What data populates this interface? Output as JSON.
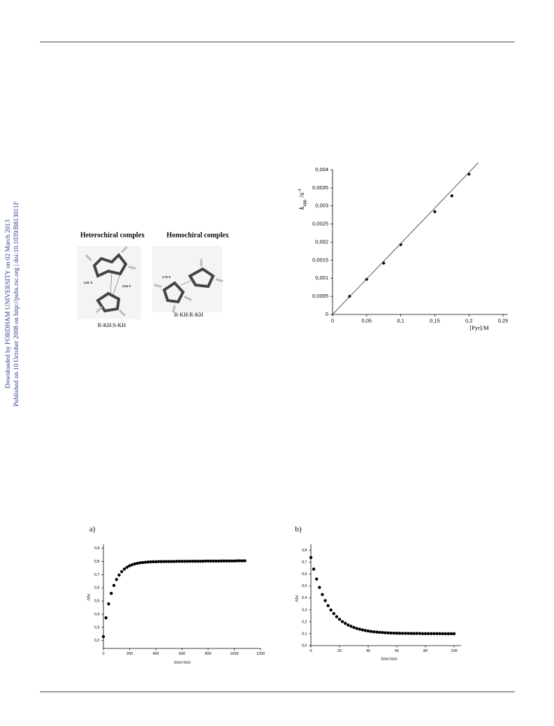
{
  "sidebar": {
    "downloaded": "Downloaded by FORDHAM UNIVERSITY on 02 March 2013",
    "published": "Published on 10 October 2008 on http://pubs.rsc.org | doi:10.1039/B813011F"
  },
  "figure_structures": {
    "left_title": "Heterochiral complex",
    "right_title": "Homochiral complex",
    "distance_1": "2.91 Å",
    "distance_2": "2.84 Å",
    "distance_3": "2.79 Å",
    "left_caption": "R-KH:S-KH",
    "right_caption": "R-KH:R-KH"
  },
  "chart_data": [
    {
      "type": "scatter",
      "x_label": "[Pyr]/M",
      "y_label": {
        "symbol": "k",
        "subscript": "app",
        "unit": "/s",
        "superscript": "-1"
      },
      "xlim": [
        0,
        0.25
      ],
      "ylim": [
        0,
        0.004
      ],
      "xticks": [
        0,
        {
          "value": 0.05,
          "label": "0,05"
        },
        {
          "value": 0.1,
          "label": "0,1"
        },
        {
          "value": 0.15,
          "label": "0,15"
        },
        {
          "value": 0.2,
          "label": "0,2"
        },
        {
          "value": 0.25,
          "label": "0,25"
        }
      ],
      "yticks": [
        0,
        {
          "value": 0.0005,
          "label": "0,0005"
        },
        {
          "value": 0.001,
          "label": "0,001"
        },
        {
          "value": 0.0015,
          "label": "0,0015"
        },
        {
          "value": 0.002,
          "label": "0,002"
        },
        {
          "value": 0.0025,
          "label": "0,0025"
        },
        {
          "value": 0.003,
          "label": "0,003"
        },
        {
          "value": 0.0035,
          "label": "0,0035"
        },
        {
          "value": 0.004,
          "label": "0,004"
        }
      ],
      "series": [
        {
          "color": "#000000",
          "marker": "diamond",
          "x": [
            0.025,
            0.05,
            0.075,
            0.1,
            0.15,
            0.175,
            0.2
          ],
          "values": [
            0.0005,
            0.00097,
            0.00142,
            0.00193,
            0.00284,
            0.00328,
            0.00388
          ]
        },
        {
          "color": "#555555",
          "style": "line",
          "x": [
            0,
            0.214
          ],
          "values": [
            0,
            0.0042
          ]
        }
      ]
    },
    {
      "type": "scatter",
      "panel": "a)",
      "x_label": "time/min",
      "y_label": "Abs",
      "xlim": [
        0,
        1200
      ],
      "ylim": [
        0.14,
        0.93
      ],
      "xticks": [
        0,
        200,
        400,
        600,
        800,
        1000,
        1200
      ],
      "yticks": [
        {
          "value": 0.2,
          "label": "0,2"
        },
        {
          "value": 0.3,
          "label": "0,3"
        },
        {
          "value": 0.4,
          "label": "0,4"
        },
        {
          "value": 0.5,
          "label": "0,5"
        },
        {
          "value": 0.6,
          "label": "0,6"
        },
        {
          "value": 0.7,
          "label": "0,7"
        },
        {
          "value": 0.8,
          "label": "0,8"
        },
        {
          "value": 0.9,
          "label": "0,9"
        }
      ],
      "series": [
        {
          "color": "#000000",
          "marker": "circle",
          "x": [
            0,
            20,
            40,
            60,
            80,
            100,
            120,
            140,
            160,
            180,
            200,
            220,
            240,
            260,
            280,
            300,
            320,
            340,
            360,
            380,
            400,
            420,
            440,
            460,
            480,
            500,
            520,
            540,
            560,
            580,
            600,
            620,
            640,
            660,
            680,
            700,
            720,
            740,
            760,
            780,
            800,
            820,
            840,
            860,
            880,
            900,
            920,
            940,
            960,
            980,
            1000,
            1020,
            1040,
            1060,
            1080
          ],
          "values": [
            0.23,
            0.372,
            0.478,
            0.558,
            0.618,
            0.663,
            0.697,
            0.723,
            0.742,
            0.756,
            0.767,
            0.775,
            0.782,
            0.786,
            0.79,
            0.792,
            0.794,
            0.796,
            0.797,
            0.798,
            0.798,
            0.799,
            0.799,
            0.799,
            0.8,
            0.8,
            0.8,
            0.8,
            0.801,
            0.801,
            0.801,
            0.801,
            0.801,
            0.802,
            0.802,
            0.802,
            0.802,
            0.802,
            0.802,
            0.803,
            0.803,
            0.803,
            0.803,
            0.803,
            0.803,
            0.804,
            0.804,
            0.804,
            0.804,
            0.804,
            0.804,
            0.805,
            0.805,
            0.805,
            0.805
          ]
        }
      ]
    },
    {
      "type": "scatter",
      "panel": "b)",
      "x_label": "time/min",
      "y_label": "Abs",
      "xlim": [
        0,
        100
      ],
      "ylim": [
        0,
        0.85
      ],
      "xticks": [
        0,
        20,
        40,
        60,
        80,
        100
      ],
      "yticks": [
        {
          "value": 0,
          "label": "0,0"
        },
        {
          "value": 0.1,
          "label": "0,1"
        },
        {
          "value": 0.2,
          "label": "0,2"
        },
        {
          "value": 0.3,
          "label": "0,3"
        },
        {
          "value": 0.4,
          "label": "0,4"
        },
        {
          "value": 0.5,
          "label": "0,5"
        },
        {
          "value": 0.6,
          "label": "0,6"
        },
        {
          "value": 0.7,
          "label": "0,7"
        },
        {
          "value": 0.8,
          "label": "0,8"
        }
      ],
      "series": [
        {
          "color": "#000000",
          "marker": "circle",
          "x": [
            0,
            2,
            4,
            6,
            8,
            10,
            12,
            14,
            16,
            18,
            20,
            22,
            24,
            26,
            28,
            30,
            32,
            34,
            36,
            38,
            40,
            42,
            44,
            46,
            48,
            50,
            52,
            54,
            56,
            58,
            60,
            62,
            64,
            66,
            68,
            70,
            72,
            74,
            76,
            78,
            80,
            82,
            84,
            86,
            88,
            90,
            92,
            94,
            96,
            98,
            100
          ],
          "values": [
            0.74,
            0.642,
            0.559,
            0.488,
            0.429,
            0.378,
            0.335,
            0.299,
            0.269,
            0.243,
            0.221,
            0.202,
            0.187,
            0.173,
            0.162,
            0.153,
            0.144,
            0.138,
            0.132,
            0.127,
            0.123,
            0.119,
            0.116,
            0.114,
            0.112,
            0.11,
            0.108,
            0.107,
            0.106,
            0.105,
            0.104,
            0.104,
            0.103,
            0.103,
            0.103,
            0.102,
            0.102,
            0.102,
            0.102,
            0.101,
            0.101,
            0.101,
            0.101,
            0.101,
            0.101,
            0.101,
            0.1,
            0.1,
            0.1,
            0.1,
            0.1
          ]
        }
      ]
    }
  ]
}
